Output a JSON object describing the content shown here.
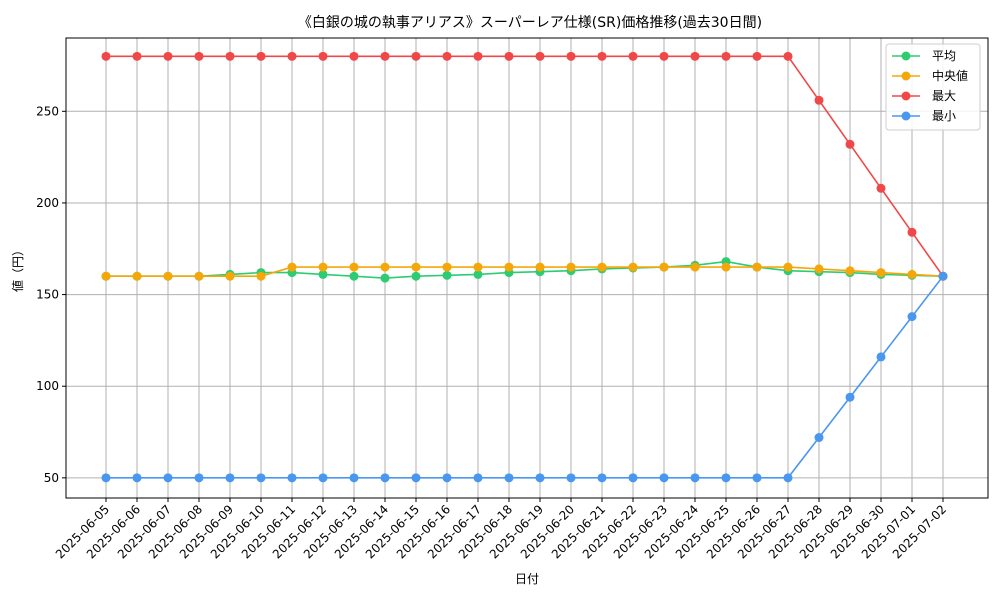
{
  "chart_data": {
    "type": "line",
    "title": "《白銀の城の執事アリアス》スーパーレア仕様(SR)価格推移(過去30日間)",
    "xlabel": "日付",
    "ylabel": "値（円）",
    "ylim": [
      39,
      290
    ],
    "yticks": [
      50,
      100,
      150,
      200,
      250
    ],
    "grid": true,
    "legend_position": "top-right",
    "categories": [
      "2025-06-05",
      "2025-06-06",
      "2025-06-07",
      "2025-06-08",
      "2025-06-09",
      "2025-06-10",
      "2025-06-11",
      "2025-06-12",
      "2025-06-13",
      "2025-06-14",
      "2025-06-15",
      "2025-06-16",
      "2025-06-17",
      "2025-06-18",
      "2025-06-19",
      "2025-06-20",
      "2025-06-21",
      "2025-06-22",
      "2025-06-23",
      "2025-06-24",
      "2025-06-25",
      "2025-06-26",
      "2025-06-27",
      "2025-06-28",
      "2025-06-29",
      "2025-06-30",
      "2025-07-01",
      "2025-07-02"
    ],
    "series": [
      {
        "name": "平均",
        "color": "#2ecc71",
        "values": [
          160,
          160,
          160,
          160,
          161,
          162,
          162,
          161,
          160,
          159,
          160,
          160.5,
          161,
          162,
          162.5,
          163,
          164,
          164.5,
          165,
          166,
          168,
          165,
          163,
          162.5,
          162,
          161,
          160.5,
          160
        ]
      },
      {
        "name": "中央値",
        "color": "#f5a70a",
        "values": [
          160,
          160,
          160,
          160,
          160,
          160,
          165,
          165,
          165,
          165,
          165,
          165,
          165,
          165,
          165,
          165,
          165,
          165,
          165,
          165,
          165,
          165,
          165,
          164,
          163,
          162,
          161,
          160
        ]
      },
      {
        "name": "最大",
        "color": "#f04848",
        "values": [
          280,
          280,
          280,
          280,
          280,
          280,
          280,
          280,
          280,
          280,
          280,
          280,
          280,
          280,
          280,
          280,
          280,
          280,
          280,
          280,
          280,
          280,
          280,
          256,
          232,
          208,
          184,
          160
        ]
      },
      {
        "name": "最小",
        "color": "#4a97f0",
        "values": [
          50,
          50,
          50,
          50,
          50,
          50,
          50,
          50,
          50,
          50,
          50,
          50,
          50,
          50,
          50,
          50,
          50,
          50,
          50,
          50,
          50,
          50,
          50,
          72,
          94,
          116,
          138,
          160
        ]
      }
    ]
  }
}
